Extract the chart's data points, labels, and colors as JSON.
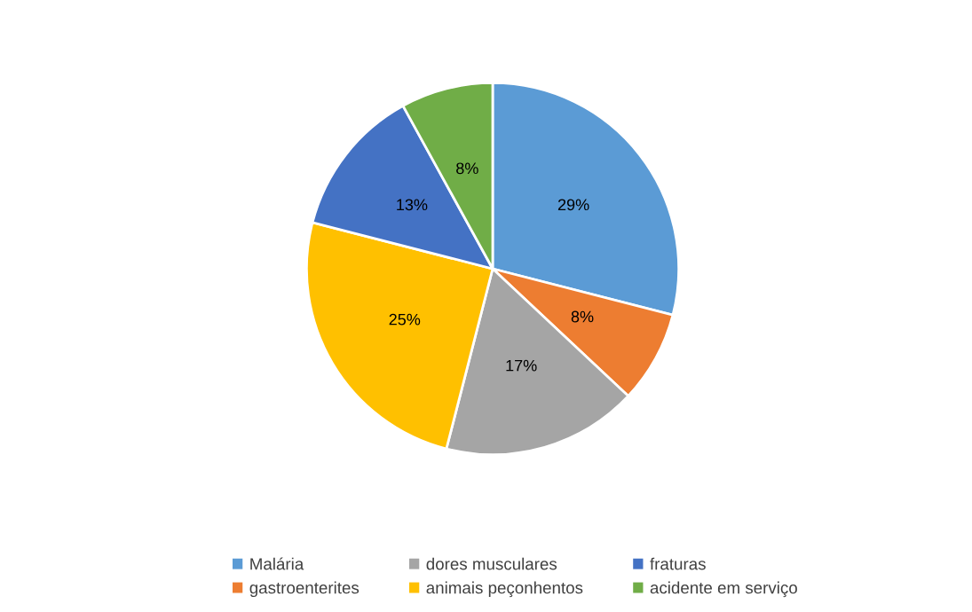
{
  "chart_data": {
    "type": "pie",
    "categories": [
      "Malária",
      "gastroenterites",
      "dores musculares",
      "animais peçonhentos",
      "fraturas",
      "acidente em serviço"
    ],
    "values": [
      29,
      8,
      17,
      25,
      13,
      8
    ],
    "colors": [
      "#5b9bd5",
      "#ed7d31",
      "#a5a5a5",
      "#ffc000",
      "#4472c4",
      "#70ad47"
    ],
    "value_labels": [
      "29%",
      "8%",
      "17%",
      "25%",
      "13%",
      "8%"
    ],
    "legend": "bottom"
  }
}
